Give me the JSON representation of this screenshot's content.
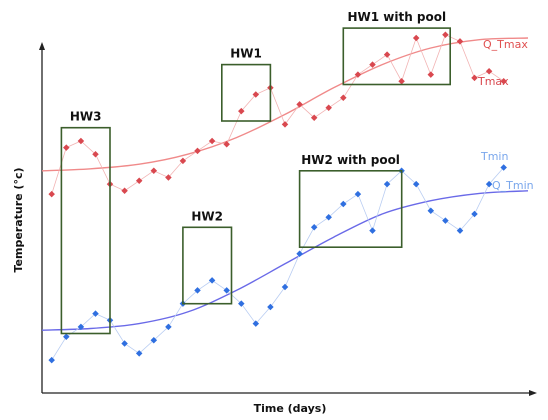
{
  "chart_data": {
    "type": "line",
    "title": "",
    "xlabel": "Time (days)",
    "ylabel": "Temperature (°c)",
    "xlim": [
      0,
      100
    ],
    "ylim": [
      0,
      100
    ],
    "grid": false,
    "colors": {
      "tmax_points": "#d9484f",
      "tmax_line": "#f08a8a",
      "tmax_label": "#d9484f",
      "q_tmax_label": "#e05050",
      "tmin_points": "#2f6fe0",
      "tmin_line": "#a9c2f0",
      "tmin_label": "#7aa7ec",
      "q_tmin_label": "#7aa7ec",
      "q_tmin_line": "#6a6ae8",
      "box": "#3b5e2b"
    },
    "series": [
      {
        "name": "Tmax",
        "style": "markers",
        "x": [
          2,
          5,
          8,
          11,
          14,
          17,
          20,
          23,
          26,
          29,
          32,
          35,
          38,
          41,
          44,
          47,
          50,
          53,
          56,
          59,
          62,
          65,
          68,
          71,
          74,
          77,
          80,
          83,
          86,
          89,
          92,
          95
        ],
        "y": [
          56,
          70,
          72,
          68,
          59,
          57,
          60,
          63,
          61,
          66,
          69,
          72,
          71,
          81,
          86,
          88,
          77,
          83,
          79,
          82,
          85,
          92,
          95,
          98,
          90,
          103,
          92,
          104,
          102,
          91,
          93,
          90
        ]
      },
      {
        "name": "Q_Tmax",
        "style": "line",
        "x": [
          0,
          10,
          20,
          30,
          40,
          50,
          60,
          70,
          80,
          90,
          100
        ],
        "y": [
          63,
          63.6,
          65,
          68,
          73,
          80,
          88,
          95,
          100,
          102.5,
          103
        ]
      },
      {
        "name": "Tmin",
        "style": "markers",
        "x": [
          2,
          5,
          8,
          11,
          14,
          17,
          20,
          23,
          26,
          29,
          32,
          35,
          38,
          41,
          44,
          47,
          50,
          53,
          56,
          59,
          62,
          65,
          68,
          71,
          74,
          77,
          80,
          83,
          86,
          89,
          92,
          95
        ],
        "y": [
          6,
          13,
          16,
          20,
          18,
          11,
          8,
          12,
          16,
          23,
          27,
          30,
          27,
          23,
          17,
          22,
          28,
          38,
          46,
          49,
          53,
          56,
          45,
          59,
          63,
          59,
          51,
          48,
          45,
          50,
          59,
          64
        ]
      },
      {
        "name": "Q_Tmin",
        "style": "line",
        "x": [
          0,
          10,
          20,
          30,
          40,
          50,
          60,
          70,
          80,
          90,
          100
        ],
        "y": [
          15,
          15.5,
          17,
          20.5,
          27,
          35,
          43,
          50,
          54,
          56.2,
          57
        ]
      }
    ],
    "annotations": [
      {
        "label": "HW3",
        "x": [
          4,
          14
        ],
        "y": [
          14,
          76
        ]
      },
      {
        "label": "HW1",
        "x": [
          37,
          47
        ],
        "y": [
          78,
          95
        ]
      },
      {
        "label": "HW2",
        "x": [
          29,
          39
        ],
        "y": [
          23,
          46
        ]
      },
      {
        "label": "HW2 with pool",
        "x": [
          53,
          74
        ],
        "y": [
          40,
          63
        ]
      },
      {
        "label": "HW1 with pool",
        "x": [
          62,
          84
        ],
        "y": [
          89,
          106
        ]
      }
    ]
  }
}
